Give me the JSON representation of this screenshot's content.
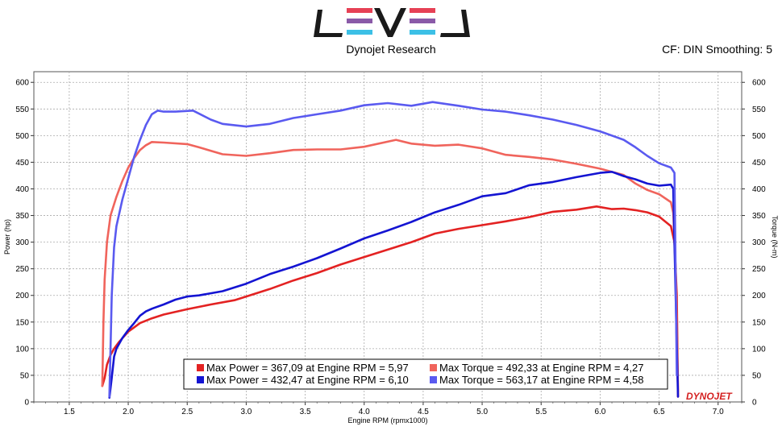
{
  "header": {
    "logo_text": "LEVEL",
    "subtitle": "Dynojet Research",
    "settings": "CF: DIN Smoothing: 5",
    "watermark": "DYNOJET"
  },
  "colors": {
    "power_run1": "#e32222",
    "torque_run1": "#f0645c",
    "power_run2": "#1414d2",
    "torque_run2": "#5a5af0",
    "logo_black": "#1a1a1a",
    "logo_red": "#e64155",
    "logo_purple": "#8a5aa8",
    "logo_blue": "#3cc0e6"
  },
  "chart_data": {
    "type": "line",
    "xlabel": "Engine RPM (rpmx1000)",
    "ylabel": "Power (hp)",
    "y2label": "Torque (N-m)",
    "xlim": [
      1.2,
      7.2
    ],
    "ylim": [
      0,
      620
    ],
    "y2lim": [
      0,
      620
    ],
    "xticks": [
      "1.5",
      "2.0",
      "2.5",
      "3.0",
      "3.5",
      "4.0",
      "4.5",
      "5.0",
      "5.5",
      "6.0",
      "6.5",
      "7.0"
    ],
    "yticks": [
      "0",
      "50",
      "100",
      "150",
      "200",
      "250",
      "300",
      "350",
      "400",
      "450",
      "500",
      "550",
      "600"
    ],
    "y2ticks": [
      "0",
      "50",
      "100",
      "150",
      "200",
      "250",
      "300",
      "350",
      "400",
      "450",
      "500",
      "550",
      "600"
    ],
    "grid": true,
    "legend_position": "bottom-center",
    "legend": [
      {
        "text": "Max Power = 367,09 at Engine RPM = 5,97",
        "color": "#e32222"
      },
      {
        "text": "Max Torque = 492,33 at Engine RPM = 4,27",
        "color": "#f0645c"
      },
      {
        "text": "Max Power = 432,47 at Engine RPM = 6,10",
        "color": "#1414d2"
      },
      {
        "text": "Max Torque = 563,17 at Engine RPM = 4,58",
        "color": "#5a5af0"
      }
    ],
    "series": [
      {
        "color": "#e32222",
        "axis": "left",
        "x": [
          1.78,
          1.8,
          1.82,
          1.85,
          1.88,
          1.92,
          1.96,
          2.0,
          2.05,
          2.1,
          2.2,
          2.3,
          2.5,
          2.7,
          2.9,
          3.0,
          3.2,
          3.4,
          3.6,
          3.8,
          4.0,
          4.2,
          4.4,
          4.6,
          4.8,
          5.0,
          5.2,
          5.4,
          5.6,
          5.8,
          5.97,
          6.1,
          6.2,
          6.3,
          6.4,
          6.5,
          6.6,
          6.63,
          6.65,
          6.66
        ],
        "values": [
          30,
          45,
          70,
          88,
          100,
          112,
          122,
          132,
          140,
          148,
          157,
          164,
          174,
          183,
          191,
          198,
          212,
          228,
          242,
          258,
          272,
          286,
          300,
          316,
          325,
          332,
          339,
          347,
          357,
          361,
          367,
          362,
          363,
          360,
          356,
          348,
          330,
          300,
          200,
          10
        ]
      },
      {
        "color": "#f0645c",
        "axis": "right",
        "x": [
          1.78,
          1.79,
          1.8,
          1.82,
          1.85,
          1.9,
          1.95,
          2.0,
          2.05,
          2.1,
          2.15,
          2.2,
          2.3,
          2.5,
          2.6,
          2.8,
          3.0,
          3.2,
          3.4,
          3.6,
          3.8,
          4.0,
          4.27,
          4.4,
          4.6,
          4.8,
          5.0,
          5.2,
          5.4,
          5.6,
          5.8,
          6.0,
          6.2,
          6.3,
          6.4,
          6.5,
          6.6,
          6.62,
          6.64,
          6.66
        ],
        "values": [
          30,
          150,
          230,
          300,
          350,
          385,
          415,
          440,
          458,
          473,
          482,
          488,
          487,
          484,
          478,
          465,
          462,
          467,
          473,
          474,
          474,
          479,
          492,
          485,
          481,
          483,
          476,
          464,
          460,
          455,
          447,
          438,
          426,
          410,
          398,
          390,
          375,
          355,
          250,
          20
        ]
      },
      {
        "color": "#1414d2",
        "axis": "left",
        "x": [
          1.84,
          1.86,
          1.88,
          1.9,
          1.95,
          2.0,
          2.05,
          2.1,
          2.15,
          2.2,
          2.3,
          2.4,
          2.5,
          2.6,
          2.8,
          3.0,
          3.2,
          3.4,
          3.6,
          3.8,
          4.0,
          4.2,
          4.4,
          4.6,
          4.8,
          5.0,
          5.2,
          5.4,
          5.6,
          5.8,
          6.0,
          6.1,
          6.2,
          6.3,
          6.4,
          6.5,
          6.6,
          6.62,
          6.64,
          6.66
        ],
        "values": [
          8,
          45,
          85,
          100,
          120,
          135,
          148,
          162,
          170,
          175,
          183,
          192,
          198,
          200,
          208,
          222,
          240,
          254,
          270,
          288,
          307,
          322,
          338,
          356,
          370,
          386,
          392,
          407,
          413,
          422,
          430,
          432,
          424,
          418,
          410,
          406,
          408,
          400,
          200,
          10
        ]
      },
      {
        "color": "#5a5af0",
        "axis": "right",
        "x": [
          1.84,
          1.85,
          1.86,
          1.88,
          1.9,
          1.95,
          2.0,
          2.05,
          2.1,
          2.15,
          2.2,
          2.25,
          2.3,
          2.4,
          2.55,
          2.7,
          2.8,
          3.0,
          3.2,
          3.4,
          3.6,
          3.8,
          4.0,
          4.2,
          4.4,
          4.58,
          4.8,
          5.0,
          5.2,
          5.4,
          5.6,
          5.8,
          6.0,
          6.2,
          6.3,
          6.4,
          6.5,
          6.6,
          6.63,
          6.65
        ],
        "values": [
          10,
          100,
          200,
          290,
          330,
          380,
          420,
          460,
          492,
          520,
          540,
          547,
          545,
          545,
          547,
          530,
          522,
          517,
          522,
          533,
          540,
          547,
          557,
          561,
          556,
          563,
          556,
          549,
          545,
          538,
          530,
          520,
          508,
          492,
          478,
          462,
          448,
          440,
          430,
          50
        ]
      }
    ]
  }
}
